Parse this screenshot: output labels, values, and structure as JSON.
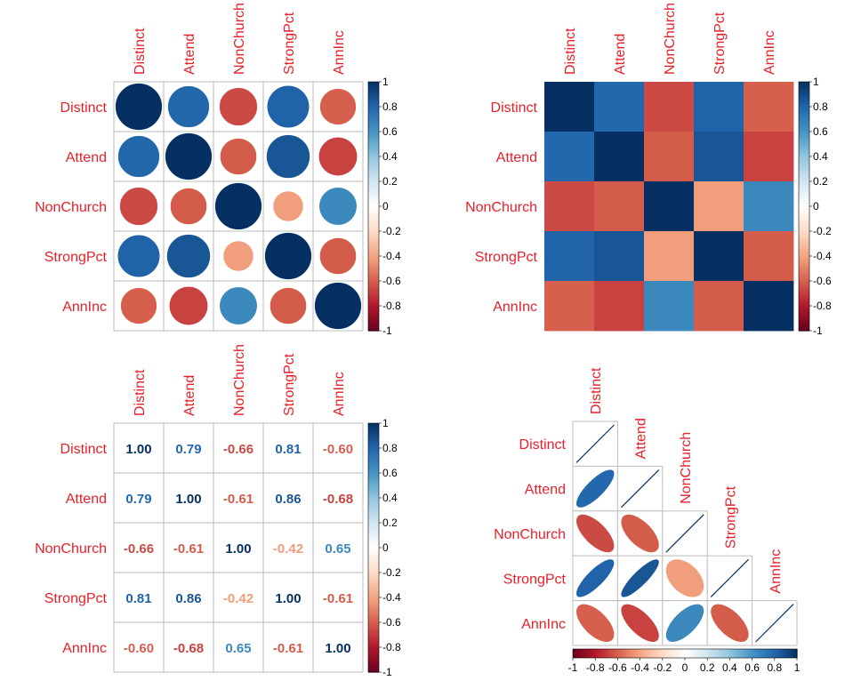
{
  "variables": [
    "Distinct",
    "Attend",
    "NonChurch",
    "StrongPct",
    "AnnInc"
  ],
  "matrix": [
    [
      1.0,
      0.79,
      -0.66,
      0.81,
      -0.6
    ],
    [
      0.79,
      1.0,
      -0.61,
      0.86,
      -0.68
    ],
    [
      -0.66,
      -0.61,
      1.0,
      -0.42,
      0.65
    ],
    [
      0.81,
      0.86,
      -0.42,
      1.0,
      -0.61
    ],
    [
      -0.6,
      -0.68,
      0.65,
      -0.61,
      1.0
    ]
  ],
  "number_labels": [
    [
      "1.00",
      "0.79",
      "-0.66",
      "0.81",
      "-0.60"
    ],
    [
      "0.79",
      "1.00",
      "-0.61",
      "0.86",
      "-0.68"
    ],
    [
      "-0.66",
      "-0.61",
      "1.00",
      "-0.42",
      "0.65"
    ],
    [
      "0.81",
      "0.86",
      "-0.42",
      "1.00",
      "-0.61"
    ],
    [
      "-0.60",
      "-0.68",
      "0.65",
      "-0.61",
      "1.00"
    ]
  ],
  "colorbar_ticks": [
    "1",
    "0.8",
    "0.6",
    "0.4",
    "0.2",
    "0",
    "-0.2",
    "-0.4",
    "-0.6",
    "-0.8",
    "-1"
  ],
  "colorbar_ticks_horizontal": [
    "-1",
    "-0.8",
    "-0.6",
    "-0.4",
    "-0.2",
    "0",
    "0.2",
    "0.4",
    "0.6",
    "0.8",
    "1"
  ],
  "colors": {
    "label": "#e8202a",
    "grid": "#bebebe",
    "palette": [
      "#67001f",
      "#b2182b",
      "#d6604d",
      "#f4a582",
      "#fddbc7",
      "#ffffff",
      "#d1e5f0",
      "#92c5de",
      "#4393c3",
      "#2166ac",
      "#053061"
    ]
  },
  "chart_data": [
    {
      "type": "heatmap",
      "method": "circle",
      "title": "",
      "variables": [
        "Distinct",
        "Attend",
        "NonChurch",
        "StrongPct",
        "AnnInc"
      ],
      "color_range": [
        -1,
        1
      ]
    },
    {
      "type": "heatmap",
      "method": "color",
      "title": "",
      "variables": [
        "Distinct",
        "Attend",
        "NonChurch",
        "StrongPct",
        "AnnInc"
      ],
      "color_range": [
        -1,
        1
      ]
    },
    {
      "type": "heatmap",
      "method": "number",
      "title": "",
      "variables": [
        "Distinct",
        "Attend",
        "NonChurch",
        "StrongPct",
        "AnnInc"
      ],
      "color_range": [
        -1,
        1
      ]
    },
    {
      "type": "heatmap",
      "method": "ellipse",
      "shape": "lower triangle",
      "title": "",
      "variables": [
        "Distinct",
        "Attend",
        "NonChurch",
        "StrongPct",
        "AnnInc"
      ],
      "color_range": [
        -1,
        1
      ]
    }
  ]
}
